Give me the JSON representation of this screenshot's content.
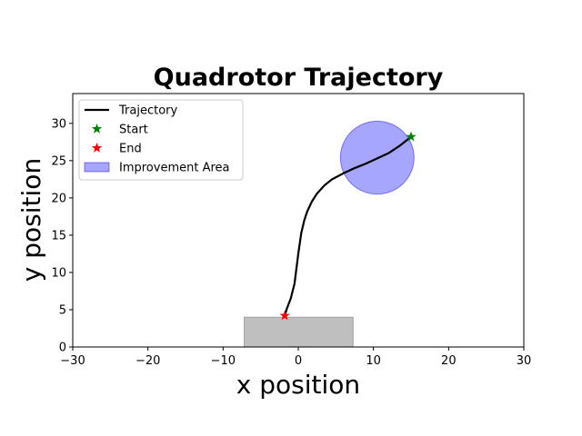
{
  "chart_data": {
    "type": "line",
    "title": "Quadrotor Trajectory",
    "xlabel": "x position",
    "ylabel": "y position",
    "xlim": [
      -30,
      30
    ],
    "ylim": [
      0,
      34
    ],
    "xticks": [
      -30,
      -20,
      -10,
      0,
      10,
      20,
      30
    ],
    "yticks": [
      0,
      5,
      10,
      15,
      20,
      25,
      30
    ],
    "xtick_labels": [
      "−30",
      "−20",
      "−10",
      "0",
      "10",
      "20",
      "30"
    ],
    "ytick_labels": [
      "0",
      "5",
      "10",
      "15",
      "20",
      "25",
      "30"
    ],
    "grid": false,
    "legend_position": "top-left",
    "series": [
      {
        "name": "Trajectory",
        "kind": "line",
        "color": "#000000",
        "x": [
          15.0,
          13.5,
          12.0,
          10.5,
          9.0,
          7.5,
          6.0,
          4.5,
          3.5,
          2.5,
          1.8,
          1.2,
          0.8,
          0.4,
          0.0,
          -0.5,
          -1.0,
          -1.5,
          -1.8
        ],
        "y": [
          28.2,
          27.0,
          26.0,
          25.3,
          24.6,
          24.0,
          23.3,
          22.5,
          21.7,
          20.6,
          19.5,
          18.2,
          17.0,
          15.3,
          12.5,
          8.5,
          6.5,
          5.2,
          4.2
        ]
      },
      {
        "name": "Start",
        "kind": "marker",
        "marker": "star",
        "color": "#008000",
        "x": 15.0,
        "y": 28.2
      },
      {
        "name": "End",
        "kind": "marker",
        "marker": "star",
        "color": "#ff0000",
        "x": -1.8,
        "y": 4.2
      },
      {
        "name": "Improvement Area",
        "kind": "circle",
        "color": "#0000ff",
        "alpha": 0.35,
        "center": [
          10.5,
          25.4
        ],
        "radius": 4.9
      }
    ],
    "obstacle": {
      "kind": "rectangle",
      "color": "#808080",
      "alpha": 0.5,
      "x": [
        -7.2,
        7.3
      ],
      "y": [
        0,
        4
      ]
    }
  }
}
